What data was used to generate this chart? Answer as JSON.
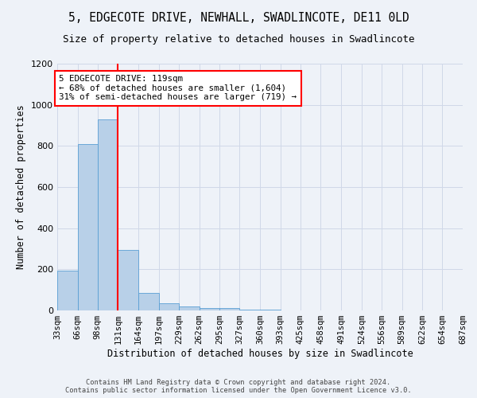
{
  "title1": "5, EDGECOTE DRIVE, NEWHALL, SWADLINCOTE, DE11 0LD",
  "title2": "Size of property relative to detached houses in Swadlincote",
  "xlabel": "Distribution of detached houses by size in Swadlincote",
  "ylabel": "Number of detached properties",
  "bin_edges": [
    33,
    66,
    98,
    131,
    164,
    197,
    229,
    262,
    295,
    327,
    360,
    393,
    425,
    458,
    491,
    524,
    556,
    589,
    622,
    654,
    687
  ],
  "bin_labels": [
    "33sqm",
    "66sqm",
    "98sqm",
    "131sqm",
    "164sqm",
    "197sqm",
    "229sqm",
    "262sqm",
    "295sqm",
    "327sqm",
    "360sqm",
    "393sqm",
    "425sqm",
    "458sqm",
    "491sqm",
    "524sqm",
    "556sqm",
    "589sqm",
    "622sqm",
    "654sqm",
    "687sqm"
  ],
  "bar_values": [
    195,
    810,
    930,
    295,
    85,
    35,
    20,
    13,
    10,
    3,
    2,
    1,
    0,
    0,
    0,
    0,
    0,
    0,
    0,
    0
  ],
  "bar_color": "#b8d0e8",
  "bar_edge_color": "#5a9fd4",
  "red_line_x": 131,
  "annotation_text": "5 EDGECOTE DRIVE: 119sqm\n← 68% of detached houses are smaller (1,604)\n31% of semi-detached houses are larger (719) →",
  "annotation_box_color": "white",
  "annotation_border_color": "red",
  "ylim": [
    0,
    1200
  ],
  "yticks": [
    0,
    200,
    400,
    600,
    800,
    1000,
    1200
  ],
  "footer_line1": "Contains HM Land Registry data © Crown copyright and database right 2024.",
  "footer_line2": "Contains public sector information licensed under the Open Government Licence v3.0.",
  "bg_color": "#eef2f8",
  "grid_color": "#d0d8e8",
  "title1_fontsize": 10.5,
  "title2_fontsize": 9
}
